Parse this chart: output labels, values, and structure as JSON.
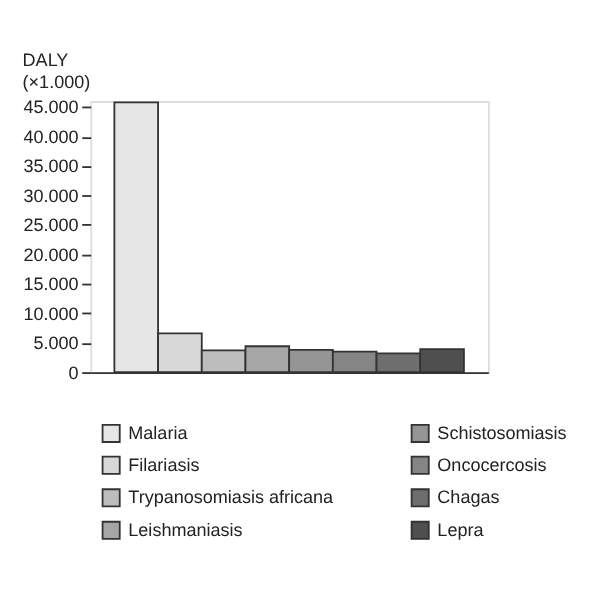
{
  "chart_data": {
    "type": "bar",
    "ylabel": "DALY\n(×1.000)",
    "categories": [
      null,
      null,
      null,
      null,
      null,
      null,
      null,
      null
    ],
    "series": [
      {
        "name": "Malaria",
        "color": "#e6e6e6",
        "values": [
          45800,
          null,
          null,
          null,
          null,
          null,
          null,
          null
        ]
      },
      {
        "name": "Filariasis",
        "color": "#d8d8d8",
        "values": [
          null,
          6600,
          null,
          null,
          null,
          null,
          null,
          null
        ]
      },
      {
        "name": "Trypanosomiasis africana",
        "color": "#bdbdbd",
        "values": [
          null,
          null,
          3700,
          null,
          null,
          null,
          null,
          null
        ]
      },
      {
        "name": "Leishmaniasis",
        "color": "#a6a6a6",
        "values": [
          null,
          null,
          null,
          4400,
          null,
          null,
          null,
          null
        ]
      },
      {
        "name": "Schistosomiasis",
        "color": "#959595",
        "values": [
          null,
          null,
          null,
          null,
          3800,
          null,
          null,
          null
        ]
      },
      {
        "name": "Oncocercosis",
        "color": "#858585",
        "values": [
          null,
          null,
          null,
          null,
          null,
          3500,
          null,
          null
        ]
      },
      {
        "name": "Chagas",
        "color": "#6e6e6e",
        "values": [
          null,
          null,
          null,
          null,
          null,
          null,
          3200,
          null
        ]
      },
      {
        "name": "Lepra",
        "color": "#4f4f4f",
        "values": [
          null,
          null,
          null,
          null,
          null,
          null,
          null,
          3900
        ]
      }
    ],
    "ylim": [
      0,
      46000
    ],
    "yticks": [
      {
        "value": 0,
        "label": "0"
      },
      {
        "value": 5000,
        "label": "5.000"
      },
      {
        "value": 10000,
        "label": "10.000"
      },
      {
        "value": 15000,
        "label": "15.000"
      },
      {
        "value": 20000,
        "label": "20.000"
      },
      {
        "value": 25000,
        "label": "25.000"
      },
      {
        "value": 30000,
        "label": "30.000"
      },
      {
        "value": 35000,
        "label": "35.000"
      },
      {
        "value": 40000,
        "label": "40.000"
      },
      {
        "value": 45000,
        "label": "45.000"
      }
    ],
    "grid": false,
    "legend": "bottom",
    "tick_labels": "y"
  }
}
